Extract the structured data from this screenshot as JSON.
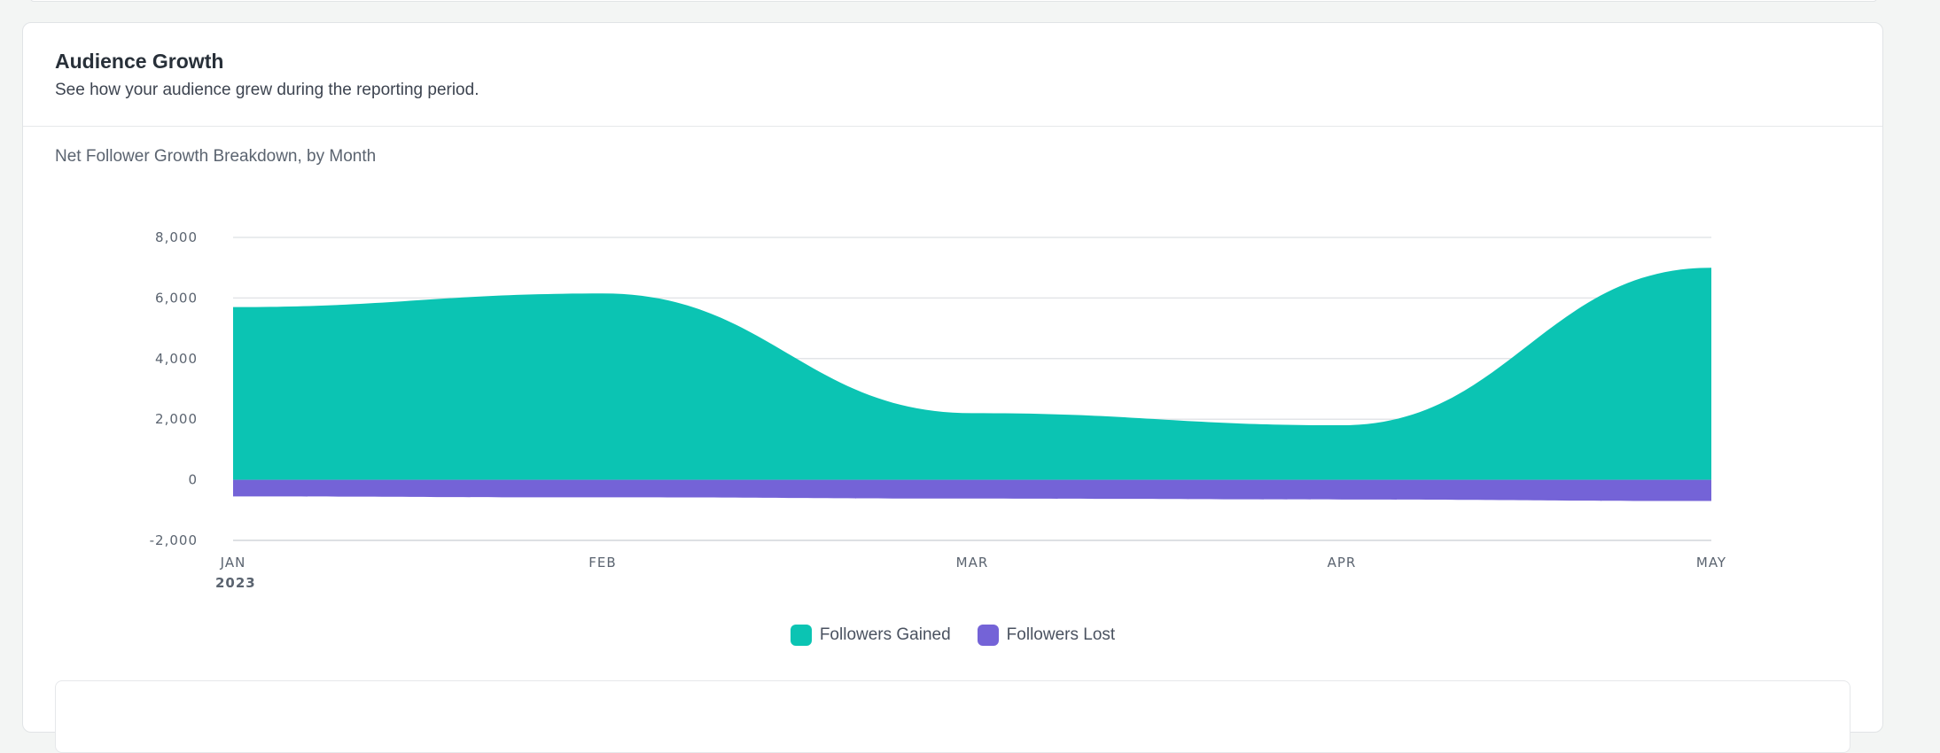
{
  "card": {
    "title": "Audience Growth",
    "subtitle": "See how your audience grew during the reporting period."
  },
  "chart_data": {
    "type": "area",
    "title": "Net Follower Growth Breakdown, by Month",
    "categories": [
      "JAN",
      "FEB",
      "MAR",
      "APR",
      "MAY"
    ],
    "year_label": "2023",
    "y_ticks": [
      "8,000",
      "6,000",
      "4,000",
      "2,000",
      "0",
      "-2,000"
    ],
    "y_tick_values": [
      8000,
      6000,
      4000,
      2000,
      0,
      -2000
    ],
    "ylim": [
      -2000,
      8000
    ],
    "grid": true,
    "legend": "bottom-center",
    "series": [
      {
        "name": "Followers Gained",
        "color": "#0bc4b3",
        "values": [
          5700,
          6150,
          2200,
          1800,
          7000
        ]
      },
      {
        "name": "Followers Lost",
        "color": "#7463d7",
        "values": [
          -550,
          -580,
          -620,
          -650,
          -700
        ]
      }
    ]
  }
}
